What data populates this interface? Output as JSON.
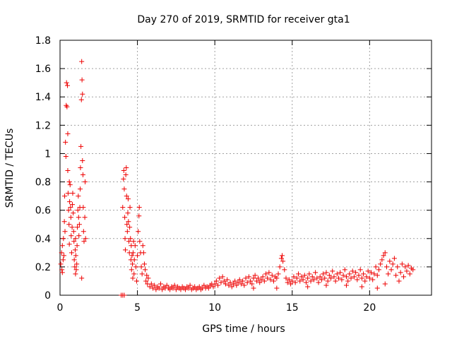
{
  "chart_data": {
    "type": "scatter",
    "title": "Day 270 of 2019, SRMTID for receiver gta1",
    "xlabel": "GPS time / hours",
    "ylabel": "SRMTID / TECUs",
    "xlim": [
      0,
      24
    ],
    "ylim": [
      0,
      1.8
    ],
    "xticks": [
      0,
      5,
      10,
      15,
      20
    ],
    "yticks": [
      0,
      0.2,
      0.4,
      0.6,
      0.8,
      1,
      1.2,
      1.4,
      1.6,
      1.8
    ],
    "xtick_labels": [
      "0",
      "5",
      "10",
      "15",
      "20"
    ],
    "ytick_labels": [
      "0",
      "0.2",
      "0.4",
      "0.6",
      "0.8",
      "1",
      "1.2",
      "1.4",
      "1.6",
      "1.8"
    ],
    "grid": true,
    "marker": "+",
    "color": "#ee0000",
    "series": [
      {
        "name": "gta1",
        "points": [
          [
            0.05,
            0.22
          ],
          [
            0.1,
            0.3
          ],
          [
            0.12,
            0.18
          ],
          [
            0.15,
            0.35
          ],
          [
            0.2,
            0.25
          ],
          [
            0.22,
            0.4
          ],
          [
            0.25,
            0.28
          ],
          [
            0.28,
            0.52
          ],
          [
            0.3,
            0.7
          ],
          [
            0.32,
            0.45
          ],
          [
            0.35,
            1.08
          ],
          [
            0.38,
            0.98
          ],
          [
            0.4,
            1.34
          ],
          [
            0.42,
            1.5
          ],
          [
            0.45,
            1.33
          ],
          [
            0.48,
            1.48
          ],
          [
            0.5,
            0.88
          ],
          [
            0.5,
            1.14
          ],
          [
            0.52,
            0.72
          ],
          [
            0.55,
            0.6
          ],
          [
            0.58,
            0.5
          ],
          [
            0.6,
            0.36
          ],
          [
            0.62,
            0.66
          ],
          [
            0.65,
            0.78
          ],
          [
            0.68,
            0.62
          ],
          [
            0.7,
            0.55
          ],
          [
            0.72,
            0.42
          ],
          [
            0.75,
            0.3
          ],
          [
            0.78,
            0.48
          ],
          [
            0.8,
            0.64
          ],
          [
            0.82,
            0.72
          ],
          [
            0.85,
            0.58
          ],
          [
            0.88,
            0.45
          ],
          [
            0.9,
            0.38
          ],
          [
            0.92,
            0.25
          ],
          [
            0.95,
            0.2
          ],
          [
            0.98,
            0.32
          ],
          [
            1.0,
            0.4
          ],
          [
            1.02,
            0.28
          ],
          [
            1.05,
            0.18
          ],
          [
            1.08,
            0.22
          ],
          [
            1.1,
            0.35
          ],
          [
            1.12,
            0.48
          ],
          [
            1.15,
            0.6
          ],
          [
            1.18,
            0.7
          ],
          [
            1.2,
            0.55
          ],
          [
            1.22,
            0.42
          ],
          [
            1.25,
            0.5
          ],
          [
            1.28,
            0.62
          ],
          [
            1.3,
            0.75
          ],
          [
            1.32,
            0.9
          ],
          [
            1.35,
            1.05
          ],
          [
            1.38,
            1.38
          ],
          [
            1.4,
            1.65
          ],
          [
            1.42,
            1.52
          ],
          [
            1.45,
            1.42
          ],
          [
            1.48,
            0.85
          ],
          [
            1.5,
            0.62
          ],
          [
            1.52,
            0.45
          ],
          [
            1.55,
            0.38
          ],
          [
            1.4,
            0.12
          ],
          [
            1.6,
            0.55
          ],
          [
            1.62,
            0.8
          ],
          [
            1.45,
            0.95
          ],
          [
            1.65,
            0.4
          ],
          [
            0.15,
            0.16
          ],
          [
            0.6,
            0.8
          ],
          [
            1.0,
            0.15
          ],
          [
            3.95,
            0.0
          ],
          [
            4.05,
            0.0
          ],
          [
            4.15,
            0.0
          ],
          [
            4.05,
            0.62
          ],
          [
            4.1,
            0.82
          ],
          [
            4.12,
            0.88
          ],
          [
            4.15,
            0.75
          ],
          [
            4.18,
            0.55
          ],
          [
            4.2,
            0.4
          ],
          [
            4.22,
            0.32
          ],
          [
            4.25,
            0.85
          ],
          [
            4.28,
            0.9
          ],
          [
            4.3,
            0.7
          ],
          [
            4.32,
            0.5
          ],
          [
            4.35,
            0.45
          ],
          [
            4.38,
            0.58
          ],
          [
            4.4,
            0.68
          ],
          [
            4.42,
            0.52
          ],
          [
            4.45,
            0.38
          ],
          [
            4.48,
            0.3
          ],
          [
            4.5,
            0.48
          ],
          [
            4.52,
            0.62
          ],
          [
            4.55,
            0.4
          ],
          [
            4.58,
            0.25
          ],
          [
            4.6,
            0.35
          ],
          [
            4.62,
            0.18
          ],
          [
            4.65,
            0.28
          ],
          [
            4.68,
            0.22
          ],
          [
            4.7,
            0.12
          ],
          [
            4.72,
            0.3
          ],
          [
            4.75,
            0.38
          ],
          [
            4.78,
            0.15
          ],
          [
            4.8,
            0.25
          ],
          [
            4.85,
            0.35
          ],
          [
            4.9,
            0.2
          ],
          [
            4.95,
            0.1
          ],
          [
            5.0,
            0.28
          ],
          [
            5.05,
            0.45
          ],
          [
            5.1,
            0.56
          ],
          [
            5.12,
            0.62
          ],
          [
            5.15,
            0.38
          ],
          [
            5.2,
            0.3
          ],
          [
            5.25,
            0.2
          ],
          [
            5.3,
            0.15
          ],
          [
            5.35,
            0.35
          ],
          [
            5.4,
            0.3
          ],
          [
            5.45,
            0.22
          ],
          [
            5.5,
            0.18
          ],
          [
            5.55,
            0.1
          ],
          [
            5.6,
            0.14
          ],
          [
            5.65,
            0.08
          ],
          [
            5.7,
            0.12
          ],
          [
            5.8,
            0.06
          ],
          [
            5.9,
            0.08
          ],
          [
            6.0,
            0.05
          ],
          [
            6.1,
            0.07
          ],
          [
            6.2,
            0.04
          ],
          [
            6.3,
            0.06
          ],
          [
            6.4,
            0.05
          ],
          [
            6.5,
            0.08
          ],
          [
            6.6,
            0.04
          ],
          [
            6.7,
            0.06
          ],
          [
            6.8,
            0.05
          ],
          [
            6.9,
            0.07
          ],
          [
            7.0,
            0.05
          ],
          [
            7.1,
            0.04
          ],
          [
            7.2,
            0.06
          ],
          [
            7.3,
            0.05
          ],
          [
            7.4,
            0.07
          ],
          [
            7.5,
            0.04
          ],
          [
            7.6,
            0.06
          ],
          [
            7.7,
            0.05
          ],
          [
            7.8,
            0.04
          ],
          [
            7.9,
            0.06
          ],
          [
            8.0,
            0.05
          ],
          [
            8.1,
            0.04
          ],
          [
            8.2,
            0.06
          ],
          [
            8.3,
            0.05
          ],
          [
            8.4,
            0.07
          ],
          [
            8.5,
            0.04
          ],
          [
            8.6,
            0.05
          ],
          [
            8.7,
            0.06
          ],
          [
            8.8,
            0.04
          ],
          [
            8.9,
            0.05
          ],
          [
            9.0,
            0.06
          ],
          [
            9.1,
            0.04
          ],
          [
            9.2,
            0.05
          ],
          [
            9.3,
            0.07
          ],
          [
            9.4,
            0.05
          ],
          [
            9.5,
            0.06
          ],
          [
            9.6,
            0.05
          ],
          [
            9.7,
            0.07
          ],
          [
            9.8,
            0.08
          ],
          [
            9.9,
            0.06
          ],
          [
            10.0,
            0.08
          ],
          [
            10.1,
            0.1
          ],
          [
            10.2,
            0.07
          ],
          [
            10.3,
            0.12
          ],
          [
            10.4,
            0.09
          ],
          [
            10.5,
            0.13
          ],
          [
            10.6,
            0.1
          ],
          [
            10.7,
            0.08
          ],
          [
            10.8,
            0.11
          ],
          [
            10.9,
            0.07
          ],
          [
            11.0,
            0.09
          ],
          [
            11.1,
            0.06
          ],
          [
            11.2,
            0.08
          ],
          [
            11.3,
            0.1
          ],
          [
            11.4,
            0.07
          ],
          [
            11.5,
            0.09
          ],
          [
            11.6,
            0.11
          ],
          [
            11.7,
            0.08
          ],
          [
            11.8,
            0.1
          ],
          [
            11.9,
            0.07
          ],
          [
            12.0,
            0.12
          ],
          [
            12.1,
            0.09
          ],
          [
            12.2,
            0.13
          ],
          [
            12.3,
            0.1
          ],
          [
            12.4,
            0.08
          ],
          [
            12.5,
            0.12
          ],
          [
            12.6,
            0.14
          ],
          [
            12.7,
            0.1
          ],
          [
            12.8,
            0.12
          ],
          [
            12.9,
            0.09
          ],
          [
            13.0,
            0.11
          ],
          [
            13.1,
            0.13
          ],
          [
            13.2,
            0.1
          ],
          [
            13.3,
            0.15
          ],
          [
            13.4,
            0.12
          ],
          [
            13.5,
            0.16
          ],
          [
            13.6,
            0.11
          ],
          [
            13.7,
            0.14
          ],
          [
            13.8,
            0.1
          ],
          [
            13.9,
            0.13
          ],
          [
            14.0,
            0.12
          ],
          [
            14.1,
            0.15
          ],
          [
            14.2,
            0.2
          ],
          [
            14.3,
            0.26
          ],
          [
            14.35,
            0.28
          ],
          [
            14.4,
            0.24
          ],
          [
            14.5,
            0.18
          ],
          [
            14.6,
            0.12
          ],
          [
            14.7,
            0.09
          ],
          [
            14.8,
            0.11
          ],
          [
            14.9,
            0.08
          ],
          [
            15.0,
            0.1
          ],
          [
            15.1,
            0.13
          ],
          [
            15.2,
            0.09
          ],
          [
            15.3,
            0.12
          ],
          [
            15.4,
            0.15
          ],
          [
            15.5,
            0.1
          ],
          [
            15.6,
            0.13
          ],
          [
            15.7,
            0.11
          ],
          [
            15.8,
            0.14
          ],
          [
            15.9,
            0.09
          ],
          [
            16.0,
            0.12
          ],
          [
            16.1,
            0.15
          ],
          [
            16.2,
            0.1
          ],
          [
            16.3,
            0.13
          ],
          [
            16.4,
            0.11
          ],
          [
            16.5,
            0.16
          ],
          [
            16.6,
            0.12
          ],
          [
            16.7,
            0.09
          ],
          [
            16.8,
            0.13
          ],
          [
            16.9,
            0.11
          ],
          [
            17.0,
            0.15
          ],
          [
            17.1,
            0.12
          ],
          [
            17.2,
            0.16
          ],
          [
            17.3,
            0.1
          ],
          [
            17.4,
            0.14
          ],
          [
            17.5,
            0.12
          ],
          [
            17.6,
            0.17
          ],
          [
            17.7,
            0.13
          ],
          [
            17.8,
            0.1
          ],
          [
            17.9,
            0.15
          ],
          [
            18.0,
            0.12
          ],
          [
            18.1,
            0.16
          ],
          [
            18.2,
            0.11
          ],
          [
            18.3,
            0.14
          ],
          [
            18.4,
            0.18
          ],
          [
            18.5,
            0.13
          ],
          [
            18.6,
            0.1
          ],
          [
            18.7,
            0.15
          ],
          [
            18.8,
            0.12
          ],
          [
            18.9,
            0.17
          ],
          [
            19.0,
            0.13
          ],
          [
            19.1,
            0.16
          ],
          [
            19.2,
            0.11
          ],
          [
            19.3,
            0.14
          ],
          [
            19.4,
            0.18
          ],
          [
            19.5,
            0.12
          ],
          [
            19.6,
            0.15
          ],
          [
            19.7,
            0.1
          ],
          [
            19.8,
            0.13
          ],
          [
            19.9,
            0.17
          ],
          [
            20.0,
            0.12
          ],
          [
            20.1,
            0.16
          ],
          [
            20.2,
            0.11
          ],
          [
            20.3,
            0.15
          ],
          [
            20.4,
            0.2
          ],
          [
            20.5,
            0.14
          ],
          [
            20.6,
            0.18
          ],
          [
            20.7,
            0.22
          ],
          [
            20.8,
            0.25
          ],
          [
            20.9,
            0.28
          ],
          [
            21.0,
            0.3
          ],
          [
            21.1,
            0.2
          ],
          [
            21.2,
            0.15
          ],
          [
            21.3,
            0.24
          ],
          [
            21.4,
            0.18
          ],
          [
            21.5,
            0.22
          ],
          [
            21.6,
            0.26
          ],
          [
            21.7,
            0.14
          ],
          [
            21.8,
            0.2
          ],
          [
            21.9,
            0.1
          ],
          [
            22.0,
            0.16
          ],
          [
            22.1,
            0.22
          ],
          [
            22.2,
            0.13
          ],
          [
            22.3,
            0.2
          ],
          [
            22.4,
            0.17
          ],
          [
            22.5,
            0.21
          ],
          [
            22.6,
            0.15
          ],
          [
            22.7,
            0.19
          ],
          [
            22.8,
            0.18
          ],
          [
            14.0,
            0.05
          ],
          [
            16.0,
            0.06
          ],
          [
            18.5,
            0.07
          ],
          [
            21.0,
            0.08
          ],
          [
            12.5,
            0.05
          ],
          [
            19.5,
            0.06
          ],
          [
            20.5,
            0.05
          ],
          [
            17.2,
            0.07
          ]
        ]
      }
    ]
  }
}
